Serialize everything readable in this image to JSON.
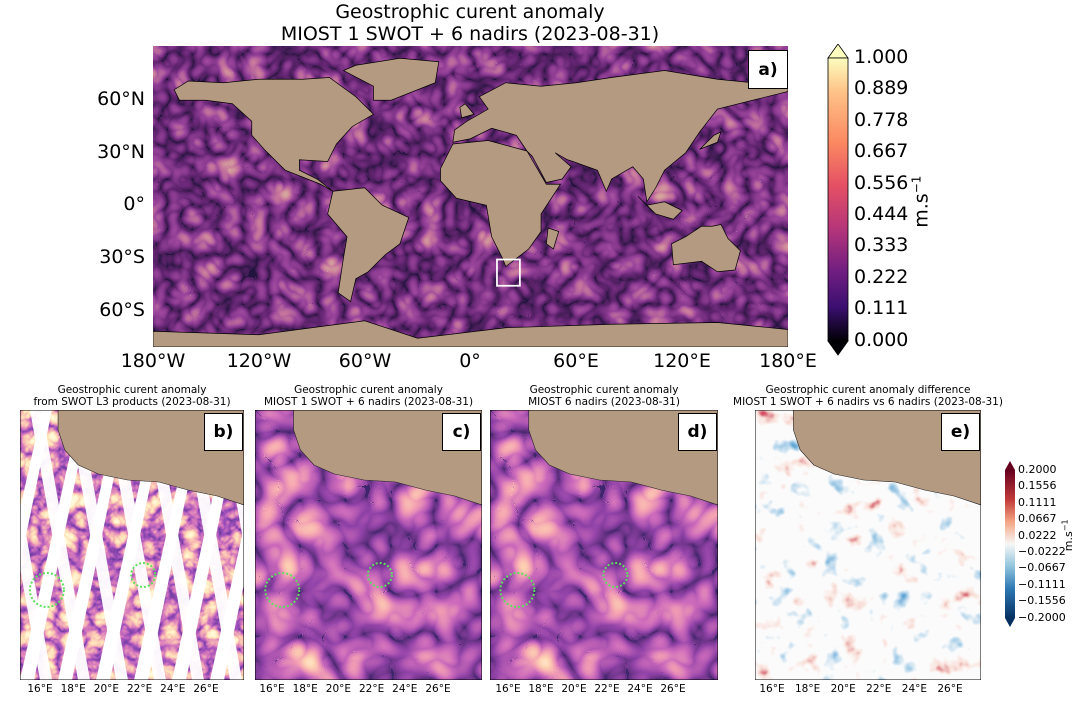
{
  "figure": {
    "title_line1": "Geostrophic curent anomaly",
    "title_line2": "MIOST 1 SWOT + 6 nadirs (2023-08-31)"
  },
  "panel_a": {
    "label": "a)",
    "lat_ticks": [
      "60°N",
      "30°N",
      "0°",
      "30°S",
      "60°S"
    ],
    "lon_ticks": [
      "180°W",
      "120°W",
      "60°W",
      "0°",
      "60°E",
      "120°E",
      "180°E"
    ],
    "colorbar": {
      "ticks": [
        "1.000",
        "0.889",
        "0.778",
        "0.667",
        "0.556",
        "0.444",
        "0.333",
        "0.222",
        "0.111",
        "0.000"
      ],
      "unit": "m.s",
      "unit_exp": "−1",
      "colormap": "magma",
      "colors": [
        "#fcfdbf",
        "#fc8961",
        "#b73779",
        "#51127c",
        "#000004"
      ]
    }
  },
  "panels": [
    {
      "label": "b)",
      "title_line1": "Geostrophic curent anomaly",
      "title_line2": "from SWOT L3 products (2023-08-31)"
    },
    {
      "label": "c)",
      "title_line1": "Geostrophic curent anomaly",
      "title_line2": "MIOST 1 SWOT + 6 nadirs (2023-08-31)"
    },
    {
      "label": "d)",
      "title_line1": "Geostrophic curent anomaly",
      "title_line2": "MIOST 6 nadirs (2023-08-31)"
    },
    {
      "label": "e)",
      "title_line1": "Geostrophic curent anomaly difference",
      "title_line2": "MIOST 1 SWOT + 6 nadirs vs 6 nadirs (2023-08-31)"
    }
  ],
  "small_lon_ticks": [
    "16°E",
    "18°E",
    "20°E",
    "22°E",
    "24°E",
    "26°E"
  ],
  "panel_e_colorbar": {
    "ticks": [
      "0.2000",
      "0.1556",
      "0.1111",
      "0.0667",
      "0.0222",
      "−0.0222",
      "−0.0667",
      "−0.1111",
      "−0.1556",
      "−0.2000"
    ],
    "unit": "m.s",
    "unit_exp": "−1",
    "colormap": "RdBu_r",
    "colors": [
      "#67001f",
      "#d6604d",
      "#f7f7f7",
      "#4393c3",
      "#053061"
    ]
  },
  "colors": {
    "land": "#b59a82",
    "highlight_box": "#ffffff",
    "eddy_circle": "#5ee05e"
  }
}
